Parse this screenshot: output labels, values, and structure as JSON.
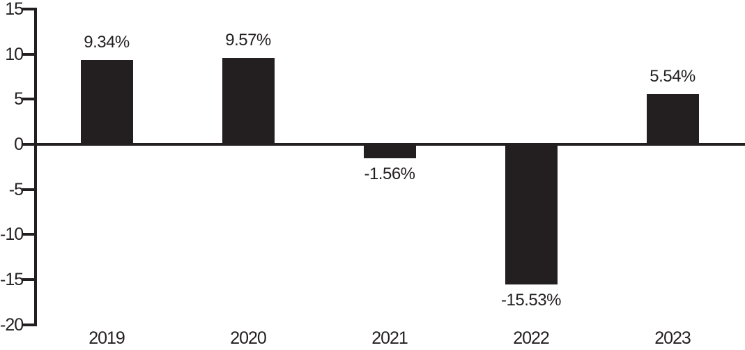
{
  "chart_data": {
    "type": "bar",
    "title": "",
    "xlabel": "",
    "ylabel": "",
    "unit": "%",
    "categories": [
      "2019",
      "2020",
      "2021",
      "2022",
      "2023"
    ],
    "values": [
      9.34,
      9.57,
      -1.56,
      -15.53,
      5.54
    ],
    "value_labels": [
      "9.34%",
      "9.57%",
      "-1.56%",
      "-15.53%",
      "5.54%"
    ],
    "y_ticks": [
      15,
      10,
      5,
      0,
      -5,
      -10,
      -15,
      -20
    ],
    "ylim": [
      -20,
      15
    ],
    "grid": false,
    "legend": false,
    "bar_color": "#231f20",
    "axis_color": "#231f20",
    "text_color": "#231f20",
    "background_color": "#ffffff"
  }
}
